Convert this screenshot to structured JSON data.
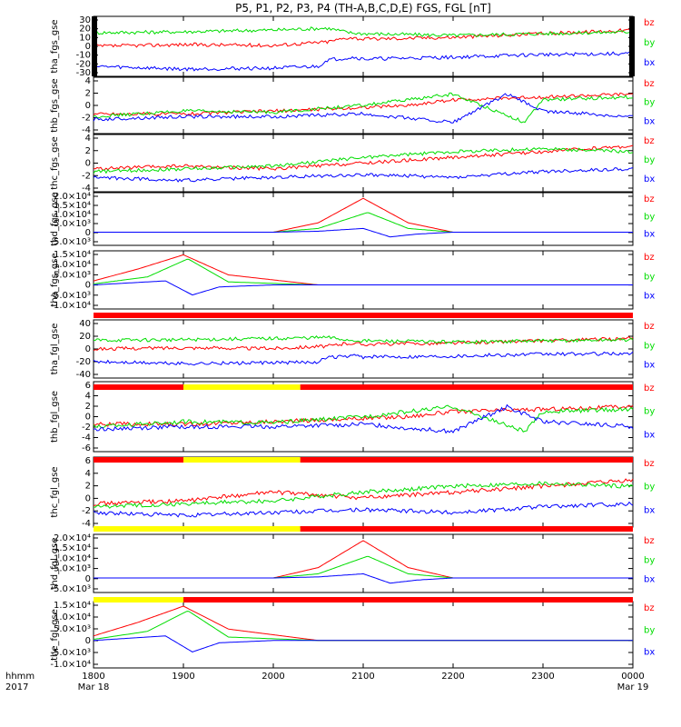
{
  "title": "P5, P1, P2, P3, P4 (TH-A,B,C,D,E) FGS, FGL [nT]",
  "legend": [
    {
      "label": "bz",
      "color": "#ff0000"
    },
    {
      "label": "by",
      "color": "#00dd00"
    },
    {
      "label": "bx",
      "color": "#0000ff"
    }
  ],
  "x_axis": {
    "ticks": [
      "1800",
      "1900",
      "2000",
      "2100",
      "2200",
      "2300",
      "0000"
    ],
    "dates": [
      "Mar 18",
      "Mar 19"
    ],
    "corner_label": "hhmm",
    "corner_year": "2017"
  },
  "colors": {
    "bz": "#ff0000",
    "by": "#00dd00",
    "bx": "#0000ff",
    "flag_bad": "#ff0000",
    "flag_ok": "#ffff00"
  },
  "chart_data": [
    {
      "type": "line",
      "ylabel": "tha_fgs_gse",
      "yticks": [
        "30",
        "20",
        "10",
        "0",
        "-10",
        "-20",
        "-30"
      ],
      "ylim": [
        -33,
        33
      ],
      "x_unit": "hours after 18:00 Mar 18",
      "series": [
        {
          "name": "bz",
          "x": [
            0,
            1,
            2,
            2.6,
            2.85,
            3,
            4,
            5,
            6
          ],
          "y": [
            0,
            2,
            1,
            5,
            10,
            8,
            10,
            14,
            18
          ]
        },
        {
          "name": "by",
          "x": [
            0,
            1,
            2,
            2.6,
            2.85,
            3,
            4,
            5,
            6
          ],
          "y": [
            15,
            16,
            18,
            20,
            15,
            14,
            12,
            14,
            16
          ]
        },
        {
          "name": "bx",
          "x": [
            0,
            1,
            2,
            2.5,
            2.6,
            2.9,
            3,
            4,
            5,
            6
          ],
          "y": [
            -22,
            -25,
            -24,
            -22,
            -15,
            -12,
            -14,
            -12,
            -9,
            -8
          ]
        }
      ]
    },
    {
      "type": "line",
      "ylabel": "thb_fgs_gse",
      "yticks": [
        "4",
        "2",
        "0",
        "-2",
        "-4"
      ],
      "ylim": [
        -5,
        5
      ],
      "series": [
        {
          "name": "bz",
          "x": [
            0,
            1,
            2,
            2.8,
            3.5,
            4,
            5,
            6
          ],
          "y": [
            -1.5,
            -1.5,
            -1,
            -0.5,
            0,
            1,
            1.5,
            2
          ]
        },
        {
          "name": "by",
          "x": [
            0,
            1,
            2,
            3,
            3.5,
            4,
            4.8,
            5,
            6
          ],
          "y": [
            -2,
            -1,
            -1.2,
            0,
            1,
            2,
            -3,
            1,
            1.5
          ]
        },
        {
          "name": "bx",
          "x": [
            0,
            1,
            2,
            3,
            4,
            4.6,
            5,
            6
          ],
          "y": [
            -2.5,
            -2,
            -2,
            -1.5,
            -3,
            2,
            -1,
            -2
          ]
        }
      ]
    },
    {
      "type": "line",
      "ylabel": "thc_fgs_gse",
      "yticks": [
        "4",
        "2",
        "0",
        "-2",
        "-4"
      ],
      "ylim": [
        -5,
        5
      ],
      "series": [
        {
          "name": "bz",
          "x": [
            0,
            1,
            2,
            3,
            4,
            5,
            6
          ],
          "y": [
            -1,
            -0.5,
            -1,
            0,
            1,
            2,
            3
          ]
        },
        {
          "name": "by",
          "x": [
            0,
            1,
            2,
            3,
            4,
            5,
            6
          ],
          "y": [
            -1.5,
            -1,
            -0.5,
            1,
            2,
            2.5,
            2
          ]
        },
        {
          "name": "bx",
          "x": [
            0,
            1,
            2,
            3,
            4,
            5,
            6
          ],
          "y": [
            -2.5,
            -3,
            -2.5,
            -2,
            -2.5,
            -1.5,
            -1
          ]
        }
      ]
    },
    {
      "type": "line",
      "ylabel": "thd_fgs_gse",
      "yticks": [
        "2.0×10⁴",
        "1.5×10⁴",
        "1.0×10⁴",
        "5.0×10³",
        "0",
        "-5.0×10³"
      ],
      "ylim": [
        -7000,
        21000
      ],
      "series": [
        {
          "name": "bz",
          "x": [
            0,
            2,
            2.5,
            3,
            3.5,
            4,
            6
          ],
          "y": [
            0,
            0,
            5000,
            18000,
            5000,
            0,
            0
          ]
        },
        {
          "name": "by",
          "x": [
            0,
            2,
            2.5,
            3.05,
            3.5,
            4,
            6
          ],
          "y": [
            0,
            0,
            2000,
            10500,
            2000,
            0,
            0
          ]
        },
        {
          "name": "bx",
          "x": [
            0,
            2,
            2.5,
            3,
            3.3,
            3.6,
            4,
            6
          ],
          "y": [
            0,
            0,
            500,
            2000,
            -2500,
            -1000,
            0,
            0
          ]
        }
      ]
    },
    {
      "type": "line",
      "ylabel": "the_fgs_gse",
      "yticks": [
        "1.5×10⁴",
        "1.0×10⁴",
        "5.0×10³",
        "0",
        "-5.0×10³",
        "-1.0×10⁴"
      ],
      "ylim": [
        -12000,
        17000
      ],
      "series": [
        {
          "name": "bz",
          "x": [
            0,
            0.5,
            1,
            1.5,
            2.5,
            6
          ],
          "y": [
            2000,
            8000,
            15000,
            5000,
            0,
            0
          ]
        },
        {
          "name": "by",
          "x": [
            0,
            0.6,
            1.05,
            1.5,
            2.5,
            6
          ],
          "y": [
            500,
            4000,
            13000,
            1500,
            0,
            0
          ]
        },
        {
          "name": "bx",
          "x": [
            0,
            0.8,
            1.1,
            1.4,
            2,
            6
          ],
          "y": [
            0,
            2000,
            -5000,
            -1000,
            0,
            0
          ]
        }
      ]
    },
    {
      "type": "line",
      "ylabel": "tha_fgl_gse",
      "yticks": [
        "40",
        "20",
        "0",
        "-20",
        "-40"
      ],
      "ylim": [
        -50,
        50
      ],
      "series": [
        {
          "name": "bz",
          "x": [
            0,
            1,
            2,
            2.6,
            2.85,
            3,
            4,
            5,
            6
          ],
          "y": [
            0,
            2,
            1,
            5,
            10,
            8,
            10,
            14,
            18
          ]
        },
        {
          "name": "by",
          "x": [
            0,
            1,
            2,
            2.6,
            2.85,
            3,
            4,
            5,
            6
          ],
          "y": [
            15,
            16,
            18,
            20,
            15,
            14,
            12,
            14,
            16
          ]
        },
        {
          "name": "bx",
          "x": [
            0,
            1,
            2,
            2.5,
            2.6,
            2.9,
            3,
            4,
            5,
            6
          ],
          "y": [
            -22,
            -25,
            -24,
            -22,
            -15,
            -12,
            -14,
            -12,
            -9,
            -8
          ]
        }
      ]
    },
    {
      "type": "line",
      "ylabel": "thb_fgl_gse",
      "yticks": [
        "6",
        "4",
        "2",
        "0",
        "-2",
        "-4",
        "-6"
      ],
      "ylim": [
        -7,
        7
      ],
      "series": [
        {
          "name": "bz",
          "x": [
            0,
            1,
            2,
            2.8,
            3.5,
            4,
            5,
            6
          ],
          "y": [
            -1.5,
            -1.5,
            -1,
            -0.5,
            0,
            1,
            1.5,
            2
          ]
        },
        {
          "name": "by",
          "x": [
            0,
            1,
            2,
            3,
            3.5,
            4,
            4.8,
            5,
            6
          ],
          "y": [
            -2,
            -1,
            -1.2,
            0,
            1,
            2,
            -3,
            1,
            1.5
          ]
        },
        {
          "name": "bx",
          "x": [
            0,
            1,
            2,
            3,
            4,
            4.6,
            5,
            6
          ],
          "y": [
            -2.5,
            -2,
            -2,
            -1.5,
            -3,
            2,
            -1,
            -2
          ]
        }
      ]
    },
    {
      "type": "line",
      "ylabel": "thc_fgl_gse",
      "yticks": [
        "6",
        "4",
        "2",
        "0",
        "-2",
        "-4"
      ],
      "ylim": [
        -5,
        7
      ],
      "series": [
        {
          "name": "bz",
          "x": [
            0,
            1,
            2,
            3,
            4,
            5,
            6
          ],
          "y": [
            -1,
            -0.5,
            1,
            0,
            1,
            2,
            3
          ]
        },
        {
          "name": "by",
          "x": [
            0,
            1,
            2,
            3,
            4,
            5,
            6
          ],
          "y": [
            -1.5,
            -1,
            -0.5,
            1,
            2,
            2.5,
            2
          ]
        },
        {
          "name": "bx",
          "x": [
            0,
            1,
            2,
            3,
            4,
            5,
            6
          ],
          "y": [
            -2.5,
            -3,
            -2.5,
            -2,
            -2.5,
            -1.5,
            -1
          ]
        }
      ]
    },
    {
      "type": "line",
      "ylabel": "thd_fgl_gse",
      "yticks": [
        "2.0×10⁴",
        "1.5×10⁴",
        "1.0×10⁴",
        "5.0×10³",
        "0",
        "-5.0×10³"
      ],
      "ylim": [
        -7000,
        21000
      ],
      "series": [
        {
          "name": "bz",
          "x": [
            0,
            2,
            2.5,
            3,
            3.5,
            4,
            6
          ],
          "y": [
            0,
            0,
            5000,
            18000,
            5000,
            0,
            0
          ]
        },
        {
          "name": "by",
          "x": [
            0,
            2,
            2.5,
            3.05,
            3.5,
            4,
            6
          ],
          "y": [
            0,
            0,
            2000,
            10500,
            2000,
            0,
            0
          ]
        },
        {
          "name": "bx",
          "x": [
            0,
            2,
            2.5,
            3,
            3.3,
            3.6,
            4,
            6
          ],
          "y": [
            0,
            0,
            500,
            2000,
            -2500,
            -1000,
            0,
            0
          ]
        }
      ]
    },
    {
      "type": "line",
      "ylabel": "the_fgl_gse",
      "yticks": [
        "1.5×10⁴",
        "1.0×10⁴",
        "5.0×10³",
        "0",
        "-5.0×10³",
        "-1.0×10⁴"
      ],
      "ylim": [
        -12000,
        17000
      ],
      "series": [
        {
          "name": "bz",
          "x": [
            0,
            0.5,
            1,
            1.5,
            2.5,
            6
          ],
          "y": [
            2000,
            8000,
            15000,
            5000,
            0,
            0
          ]
        },
        {
          "name": "by",
          "x": [
            0,
            0.6,
            1.05,
            1.5,
            2.5,
            6
          ],
          "y": [
            500,
            4000,
            13000,
            1500,
            0,
            0
          ]
        },
        {
          "name": "bx",
          "x": [
            0,
            0.8,
            1.1,
            1.4,
            2,
            6
          ],
          "y": [
            0,
            2000,
            -5000,
            -1000,
            0,
            0
          ]
        }
      ]
    }
  ]
}
